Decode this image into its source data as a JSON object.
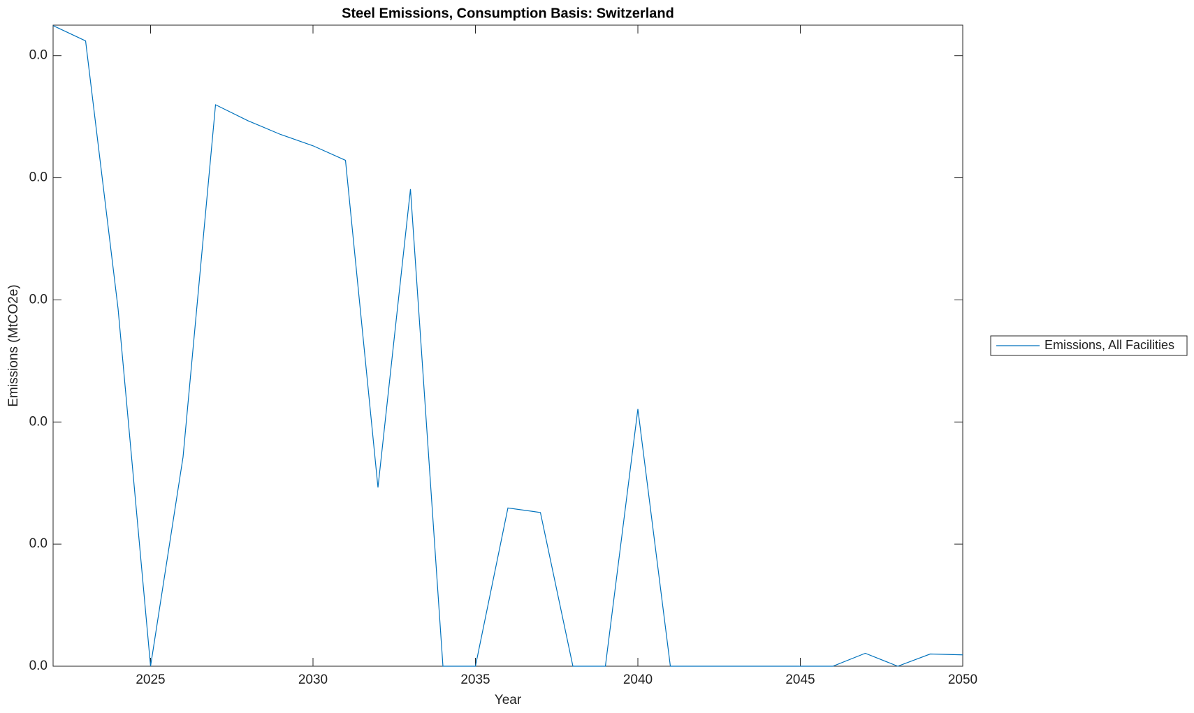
{
  "chart_data": {
    "type": "line",
    "title": "Steel Emissions, Consumption Basis: Switzerland",
    "x_label": "Year",
    "y_label": "Emissions (MtCO2e)",
    "x": [
      2022,
      2023,
      2024,
      2025,
      2026,
      2027,
      2028,
      2029,
      2030,
      2031,
      2032,
      2033,
      2034,
      2035,
      2036,
      2037,
      2038,
      2039,
      2040,
      2041,
      2042,
      2043,
      2044,
      2045,
      2046,
      2047,
      2048,
      2049,
      2050
    ],
    "series": [
      {
        "name": "Emissions, All Facilities",
        "color": "#0072bd",
        "values": [
          0.05246,
          0.05121,
          0.02928,
          0,
          0.01713,
          0.04598,
          0.04467,
          0.04355,
          0.04262,
          0.04143,
          0.01464,
          0.03907,
          0,
          0,
          0.01296,
          0.01259,
          0,
          0,
          0.02106,
          0,
          0,
          0,
          0,
          0,
          0,
          0.00106,
          0,
          0.001,
          0.00093
        ]
      }
    ],
    "xlim": [
      2022,
      2050
    ],
    "xticks": [
      2025,
      2030,
      2035,
      2040,
      2045,
      2050
    ],
    "ylim": [
      0,
      0.0525
    ],
    "yticks": [
      {
        "value": 0,
        "label": "0.0"
      },
      {
        "value": 0.01,
        "label": "0.0"
      },
      {
        "value": 0.02,
        "label": "0.0"
      },
      {
        "value": 0.03,
        "label": "0.0"
      },
      {
        "value": 0.04,
        "label": "0.0"
      },
      {
        "value": 0.05,
        "label": "0.0"
      }
    ],
    "grid": false,
    "legend": "outside-right"
  }
}
